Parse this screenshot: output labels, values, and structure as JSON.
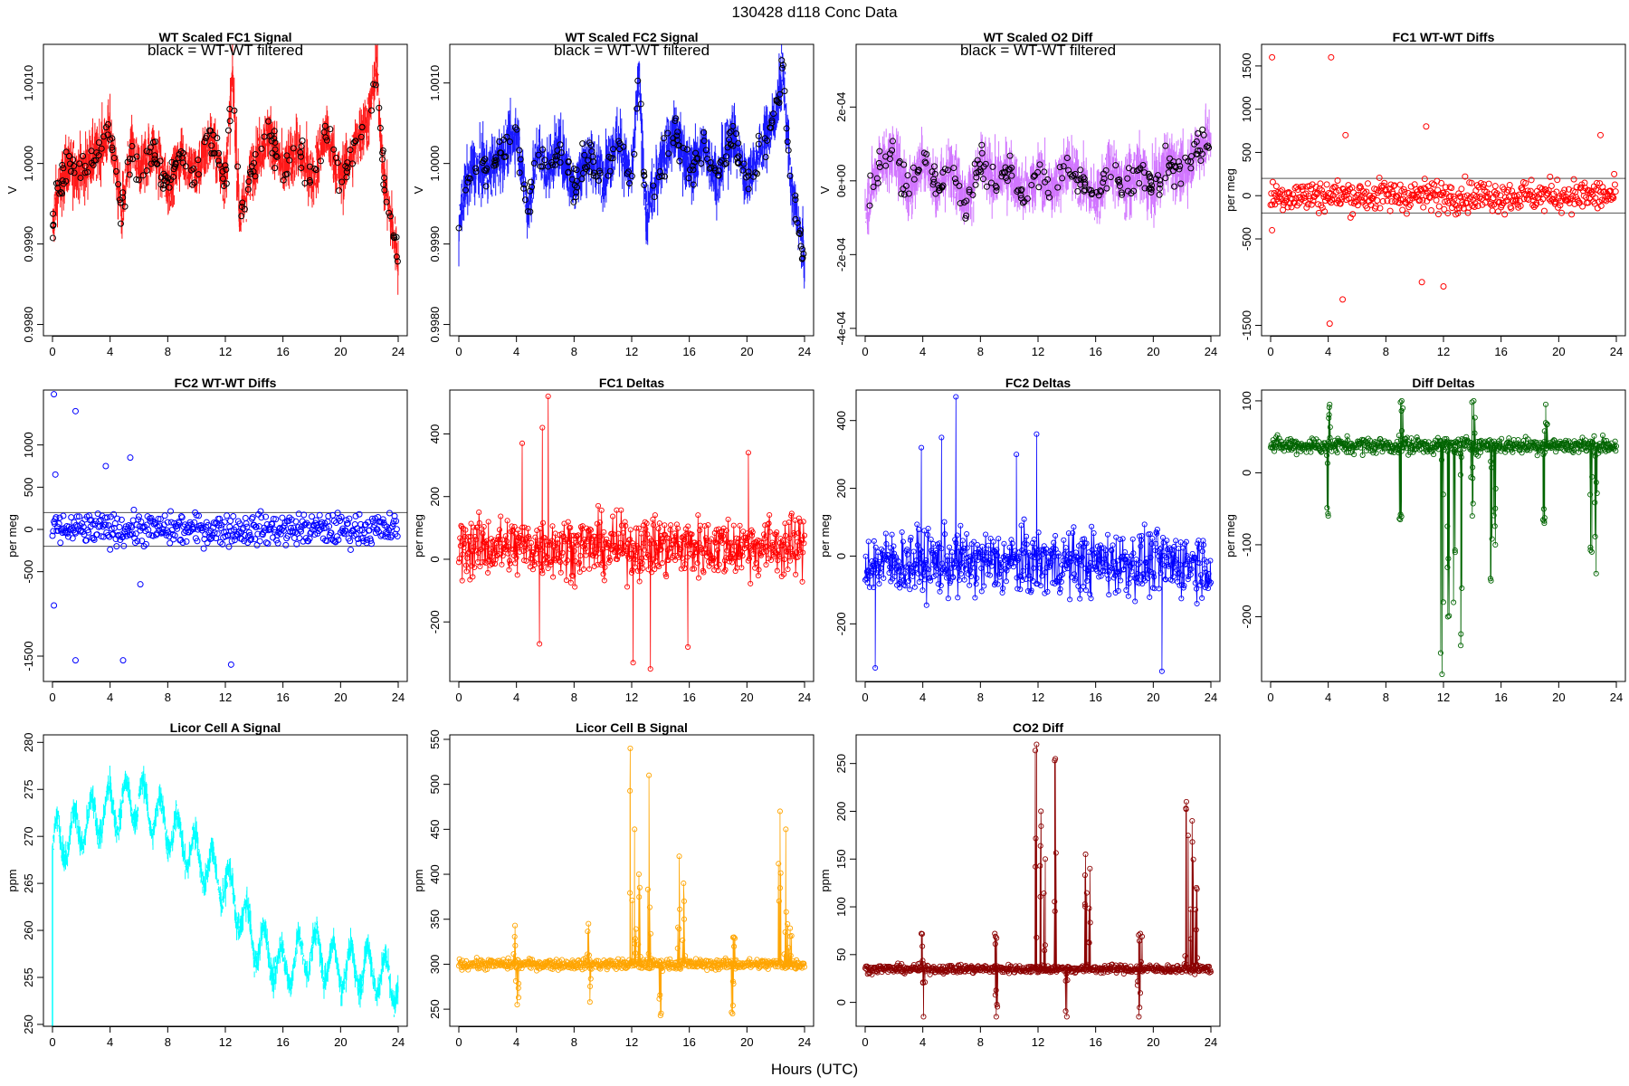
{
  "figure": {
    "title": "130428   d118   Conc Data",
    "xlabel": "Hours (UTC)"
  },
  "chart_data": [
    {
      "type": "line",
      "title": "WT Scaled FC1 Signal",
      "note": "black = WT-WT filtered",
      "ylabel": "V",
      "color": "#ff0000",
      "xlim": [
        0,
        24
      ],
      "ylim": [
        0.99786,
        1.00148
      ],
      "xticks": [
        0,
        4,
        8,
        12,
        16,
        20,
        24
      ],
      "yticks": [
        0.998,
        0.999,
        1.0,
        1.001
      ],
      "ytick_labels": [
        "0.9980",
        "0.9990",
        "1.0000",
        "1.0010"
      ],
      "series_style": "noisy-band",
      "overlay": "black circles",
      "anchors": [
        [
          0,
          0.9992
        ],
        [
          0.3,
          0.9996
        ],
        [
          1,
          0.99995
        ],
        [
          2,
          0.9999
        ],
        [
          3,
          1.0001
        ],
        [
          4,
          1.0004
        ],
        [
          4.8,
          0.9994
        ],
        [
          5.5,
          1.0002
        ],
        [
          6,
          0.9999
        ],
        [
          7,
          1.0002
        ],
        [
          8,
          0.9997
        ],
        [
          9,
          1.0001
        ],
        [
          10,
          0.99985
        ],
        [
          11,
          1.0003
        ],
        [
          12,
          0.9998
        ],
        [
          12.5,
          1.0011
        ],
        [
          13,
          0.9993
        ],
        [
          14,
          1.0
        ],
        [
          15,
          1.0004
        ],
        [
          16,
          0.9999
        ],
        [
          17,
          1.0002
        ],
        [
          18,
          0.9998
        ],
        [
          19,
          1.0004
        ],
        [
          20,
          0.9998
        ],
        [
          21,
          1.0002
        ],
        [
          22,
          1.0006
        ],
        [
          22.5,
          1.0012
        ],
        [
          23,
          0.9998
        ],
        [
          24,
          0.9988
        ]
      ]
    },
    {
      "type": "line",
      "title": "WT Scaled FC2 Signal",
      "note": "black = WT-WT filtered",
      "ylabel": "V",
      "color": "#0000ff",
      "xlim": [
        0,
        24
      ],
      "ylim": [
        0.99786,
        1.00148
      ],
      "xticks": [
        0,
        4,
        8,
        12,
        16,
        20,
        24
      ],
      "yticks": [
        0.998,
        0.999,
        1.0,
        1.001
      ],
      "ytick_labels": [
        "0.9980",
        "0.9990",
        "1.0000",
        "1.0010"
      ],
      "series_style": "noisy-band",
      "overlay": "black circles",
      "anchors": [
        [
          0,
          0.9992
        ],
        [
          0.3,
          0.9996
        ],
        [
          1,
          0.99995
        ],
        [
          2,
          0.9999
        ],
        [
          3,
          1.0001
        ],
        [
          4,
          1.0004
        ],
        [
          4.8,
          0.9994
        ],
        [
          5.5,
          1.0002
        ],
        [
          6,
          0.9999
        ],
        [
          7,
          1.0002
        ],
        [
          8,
          0.9997
        ],
        [
          9,
          1.0001
        ],
        [
          10,
          0.99985
        ],
        [
          11,
          1.0003
        ],
        [
          12,
          0.9998
        ],
        [
          12.5,
          1.0011
        ],
        [
          13,
          0.9993
        ],
        [
          14,
          1.0
        ],
        [
          15,
          1.0004
        ],
        [
          16,
          0.9999
        ],
        [
          17,
          1.0002
        ],
        [
          18,
          0.9998
        ],
        [
          19,
          1.0004
        ],
        [
          20,
          0.9998
        ],
        [
          21,
          1.0002
        ],
        [
          22,
          1.0006
        ],
        [
          22.5,
          1.0012
        ],
        [
          23,
          0.9998
        ],
        [
          24,
          0.9988
        ]
      ]
    },
    {
      "type": "line",
      "title": "WT Scaled O2 Diff",
      "note": "black = WT-WT filtered",
      "ylabel": "V",
      "color": "#cc66ff",
      "xlim": [
        0,
        24
      ],
      "ylim": [
        -0.00042,
        0.00037
      ],
      "xticks": [
        0,
        4,
        8,
        12,
        16,
        20,
        24
      ],
      "yticks": [
        -0.0004,
        -0.0002,
        0.0,
        0.0002
      ],
      "ytick_labels": [
        "-4e-04",
        "-2e-04",
        "0e+00",
        "2e-04"
      ],
      "series_style": "noisy-band",
      "overlay": "black circles",
      "anchors": [
        [
          0,
          -8e-05
        ],
        [
          1,
          5e-05
        ],
        [
          2,
          8e-05
        ],
        [
          3,
          -3e-05
        ],
        [
          4,
          6e-05
        ],
        [
          5,
          -2e-05
        ],
        [
          6,
          4e-05
        ],
        [
          7,
          -6e-05
        ],
        [
          8,
          5e-05
        ],
        [
          9,
          0.0
        ],
        [
          10,
          3e-05
        ],
        [
          11,
          -4e-05
        ],
        [
          12,
          2e-05
        ],
        [
          13,
          -3e-05
        ],
        [
          14,
          4e-05
        ],
        [
          15,
          0.0
        ],
        [
          16,
          -5e-05
        ],
        [
          17,
          4e-05
        ],
        [
          18,
          -2e-05
        ],
        [
          19,
          3e-05
        ],
        [
          20,
          -3e-05
        ],
        [
          21,
          6e-05
        ],
        [
          22,
          2e-05
        ],
        [
          23,
          8e-05
        ],
        [
          24,
          0.00012
        ]
      ]
    },
    {
      "type": "scatter",
      "title": "FC1 WT-WT Diffs",
      "ylabel": "per meg",
      "color": "#ff0000",
      "xlim": [
        0,
        24
      ],
      "ylim": [
        -1620,
        1750
      ],
      "xticks": [
        0,
        4,
        8,
        12,
        16,
        20,
        24
      ],
      "yticks": [
        -1500,
        -500,
        0,
        500,
        1000,
        1500
      ],
      "ytick_labels": [
        "-1500",
        "-500",
        "0",
        "500",
        "1000",
        "1500"
      ],
      "hlines": [
        200,
        -200
      ],
      "spread": 230,
      "outliers": [
        [
          0.1,
          1600
        ],
        [
          4.2,
          1600
        ],
        [
          4.1,
          -1480
        ],
        [
          5,
          -1200
        ],
        [
          10.5,
          -1000
        ],
        [
          12,
          -1050
        ],
        [
          10.8,
          800
        ],
        [
          0.1,
          -400
        ],
        [
          22.9,
          700
        ],
        [
          5.2,
          700
        ]
      ]
    },
    {
      "type": "scatter",
      "title": "FC2 WT-WT Diffs",
      "ylabel": "per meg",
      "color": "#0000ff",
      "xlim": [
        0,
        24
      ],
      "ylim": [
        -1800,
        1650
      ],
      "xticks": [
        0,
        4,
        8,
        12,
        16,
        20,
        24
      ],
      "yticks": [
        -1500,
        -500,
        0,
        500,
        1000
      ],
      "ytick_labels": [
        "-1500",
        "-500",
        "0",
        "500",
        "1000"
      ],
      "hlines": [
        200,
        -200
      ],
      "spread": 230,
      "outliers": [
        [
          0.1,
          1600
        ],
        [
          1.6,
          1400
        ],
        [
          0.1,
          -900
        ],
        [
          1.6,
          -1550
        ],
        [
          4.9,
          -1550
        ],
        [
          12.4,
          -1600
        ],
        [
          3.7,
          750
        ],
        [
          5.4,
          850
        ],
        [
          6.1,
          -650
        ],
        [
          0.2,
          650
        ]
      ]
    },
    {
      "type": "line",
      "title": "FC1 Deltas",
      "ylabel": "per meg",
      "color": "#ff0000",
      "xlim": [
        0,
        24
      ],
      "ylim": [
        -390,
        540
      ],
      "xticks": [
        0,
        4,
        8,
        12,
        16,
        20,
        24
      ],
      "yticks": [
        -200,
        0,
        200,
        400
      ],
      "ytick_labels": [
        "-200",
        "0",
        "200",
        "400"
      ],
      "series_style": "noisy-points",
      "center": 40,
      "spread": 110,
      "spikes": [
        [
          6.2,
          520
        ],
        [
          5.8,
          420
        ],
        [
          13.3,
          -350
        ],
        [
          12.1,
          -330
        ],
        [
          5.6,
          -270
        ],
        [
          15.9,
          -280
        ],
        [
          20.1,
          340
        ],
        [
          4.4,
          370
        ]
      ]
    },
    {
      "type": "line",
      "title": "FC2 Deltas",
      "ylabel": "per meg",
      "color": "#0000ff",
      "xlim": [
        0,
        24
      ],
      "ylim": [
        -370,
        490
      ],
      "xticks": [
        0,
        4,
        8,
        12,
        16,
        20,
        24
      ],
      "yticks": [
        -200,
        0,
        200,
        400
      ],
      "ytick_labels": [
        "-200",
        "0",
        "200",
        "400"
      ],
      "series_style": "noisy-points",
      "center": -20,
      "spread": 110,
      "spikes": [
        [
          6.3,
          470
        ],
        [
          5.3,
          350
        ],
        [
          0.7,
          -330
        ],
        [
          20.6,
          -340
        ],
        [
          11.9,
          360
        ],
        [
          3.9,
          320
        ],
        [
          10.5,
          300
        ]
      ]
    },
    {
      "type": "line",
      "title": "Diff Deltas",
      "ylabel": "per meg",
      "color": "#006400",
      "xlim": [
        0,
        24
      ],
      "ylim": [
        -290,
        115
      ],
      "xticks": [
        0,
        4,
        8,
        12,
        16,
        20,
        24
      ],
      "yticks": [
        -200,
        -100,
        0,
        100
      ],
      "ytick_labels": [
        "-200",
        "-100",
        "0",
        "100"
      ],
      "series_style": "baseline-dips",
      "center": 38,
      "spread": 8,
      "events": [
        [
          4,
          -60
        ],
        [
          4.1,
          95
        ],
        [
          9,
          -65
        ],
        [
          9.1,
          100
        ],
        [
          11.9,
          -280
        ],
        [
          12.3,
          -200
        ],
        [
          12.7,
          -180
        ],
        [
          13.2,
          -240
        ],
        [
          14,
          -60
        ],
        [
          14.1,
          100
        ],
        [
          15.3,
          -150
        ],
        [
          15.6,
          -100
        ],
        [
          19,
          -70
        ],
        [
          19.1,
          95
        ],
        [
          22.3,
          -110
        ],
        [
          22.6,
          -140
        ]
      ]
    },
    {
      "type": "line",
      "title": "Licor Cell A Signal",
      "ylabel": "ppm",
      "color": "#00ffff",
      "xlim": [
        0,
        24
      ],
      "ylim": [
        249.8,
        280.8
      ],
      "xticks": [
        0,
        4,
        8,
        12,
        16,
        20,
        24
      ],
      "yticks": [
        250,
        255,
        260,
        265,
        270,
        275,
        280
      ],
      "ytick_labels": [
        "250",
        "255",
        "260",
        "265",
        "270",
        "275",
        "280"
      ],
      "series_style": "oscillating-trend",
      "period_hours": 1.2,
      "anchors": [
        [
          0,
          269
        ],
        [
          2,
          271
        ],
        [
          4,
          273
        ],
        [
          6,
          274
        ],
        [
          8,
          271
        ],
        [
          10,
          268
        ],
        [
          12,
          265
        ],
        [
          14,
          259
        ],
        [
          16,
          256
        ],
        [
          18,
          258
        ],
        [
          20,
          256
        ],
        [
          22,
          256
        ],
        [
          24,
          254
        ]
      ]
    },
    {
      "type": "line",
      "title": "Licor Cell B Signal",
      "ylabel": "ppm",
      "color": "#ffa500",
      "xlim": [
        0,
        24
      ],
      "ylim": [
        231,
        555
      ],
      "xticks": [
        0,
        4,
        8,
        12,
        16,
        20,
        24
      ],
      "yticks": [
        250,
        300,
        350,
        400,
        450,
        500,
        550
      ],
      "ytick_labels": [
        "250",
        "300",
        "350",
        "400",
        "450",
        "500",
        "550"
      ],
      "series_style": "baseline-spikes",
      "center": 300,
      "spread": 4,
      "events": [
        [
          3.9,
          343
        ],
        [
          4.05,
          255
        ],
        [
          9,
          345
        ],
        [
          9.1,
          258
        ],
        [
          11.9,
          540
        ],
        [
          12.2,
          450
        ],
        [
          12.5,
          400
        ],
        [
          13.2,
          510
        ],
        [
          14,
          243
        ],
        [
          15.3,
          420
        ],
        [
          15.6,
          390
        ],
        [
          19,
          245
        ],
        [
          19.1,
          330
        ],
        [
          22.3,
          470
        ],
        [
          22.7,
          450
        ],
        [
          23,
          340
        ]
      ]
    },
    {
      "type": "line",
      "title": "CO2 Diff",
      "ylabel": "ppm",
      "color": "#8b0000",
      "xlim": [
        0,
        24
      ],
      "ylim": [
        -25,
        280
      ],
      "xticks": [
        0,
        4,
        8,
        12,
        16,
        20,
        24
      ],
      "yticks": [
        0,
        50,
        100,
        150,
        200,
        250
      ],
      "ytick_labels": [
        "0",
        "50",
        "100",
        "150",
        "200",
        "250"
      ],
      "series_style": "baseline-spikes",
      "center": 35,
      "spread": 3,
      "events": [
        [
          3.9,
          72
        ],
        [
          4.05,
          -15
        ],
        [
          9,
          72
        ],
        [
          9.1,
          -15
        ],
        [
          11.9,
          270
        ],
        [
          12.2,
          200
        ],
        [
          12.5,
          150
        ],
        [
          13.2,
          255
        ],
        [
          14,
          -15
        ],
        [
          15.3,
          155
        ],
        [
          15.6,
          140
        ],
        [
          19,
          -15
        ],
        [
          19.1,
          72
        ],
        [
          22.3,
          210
        ],
        [
          22.7,
          190
        ],
        [
          23,
          120
        ]
      ]
    }
  ]
}
